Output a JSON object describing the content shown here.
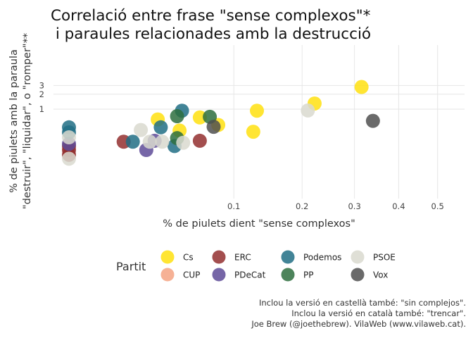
{
  "chart_data": {
    "type": "scatter",
    "title_lines": [
      "Correlació entre frase \"sense complexos\"*",
      " i paraules relacionades amb la destrucció"
    ],
    "xlabel": "% de piulets dient \"sense complexos\"",
    "ylabel_lines": [
      "% de piulets amb la paraula",
      "\"destruir\", \"liquidar\", o \"romper\"**"
    ],
    "x_scale": "sqrt",
    "y_scale": "log",
    "x_ticks": [
      0.1,
      0.2,
      0.3,
      0.4,
      0.5
    ],
    "x_tick_labels": [
      "0.1",
      "0.2",
      "0.3",
      "0.4",
      "0.5"
    ],
    "y_ticks": [
      1,
      2,
      3
    ],
    "y_tick_labels": [
      "1",
      "2",
      "3"
    ],
    "xlim": [
      0,
      0.54
    ],
    "ylim": [
      0.05,
      3.5
    ],
    "grid": true,
    "legend_title": "Partit",
    "legend_placement": "bottom",
    "series": [
      {
        "name": "Cs",
        "color": "#FFE00F",
        "points": [
          [
            0.029,
            0.62
          ],
          [
            0.045,
            0.37
          ],
          [
            0.063,
            0.68
          ],
          [
            0.082,
            0.48
          ],
          [
            0.125,
            0.35
          ],
          [
            0.13,
            0.93
          ],
          [
            0.222,
            1.3
          ],
          [
            0.315,
            2.8
          ]
        ]
      },
      {
        "name": "CUP",
        "color": "#F5A383",
        "points": []
      },
      {
        "name": "ERC",
        "color": "#932F2F",
        "points": [
          [
            0.0,
            0.12
          ],
          [
            0.0,
            0.15
          ],
          [
            0.0,
            0.18
          ],
          [
            0.011,
            0.22
          ],
          [
            0.063,
            0.23
          ]
        ]
      },
      {
        "name": "PDeCat",
        "color": "#5E4B98",
        "points": [
          [
            0.0,
            0.2
          ],
          [
            0.022,
            0.15
          ],
          [
            0.027,
            0.23
          ]
        ]
      },
      {
        "name": "Podemos",
        "color": "#216F85",
        "points": [
          [
            0.0,
            0.43
          ],
          [
            0.0,
            0.34
          ],
          [
            0.015,
            0.22
          ],
          [
            0.031,
            0.43
          ],
          [
            0.041,
            0.18
          ],
          [
            0.047,
            0.93
          ]
        ]
      },
      {
        "name": "PP",
        "color": "#2E6E3E",
        "points": [
          [
            0.043,
            0.26
          ],
          [
            0.043,
            0.72
          ],
          [
            0.073,
            0.7
          ]
        ]
      },
      {
        "name": "PSOE",
        "color": "#D9D9CF",
        "points": [
          [
            0.0,
            0.1
          ],
          [
            0.0,
            0.27
          ],
          [
            0.019,
            0.38
          ],
          [
            0.024,
            0.22
          ],
          [
            0.032,
            0.22
          ],
          [
            0.048,
            0.21
          ],
          [
            0.21,
            0.94
          ]
        ]
      },
      {
        "name": "Vox",
        "color": "#505050",
        "points": [
          [
            0.077,
            0.44
          ],
          [
            0.34,
            0.58
          ]
        ]
      }
    ],
    "caption_lines": [
      "Inclou la versió en castellà també: \"sin complejos\".",
      "Inclou la versió en català també: \"trencar\".",
      "Joe Brew (@joethebrew). VilaWeb (www.vilaweb.cat)."
    ]
  }
}
